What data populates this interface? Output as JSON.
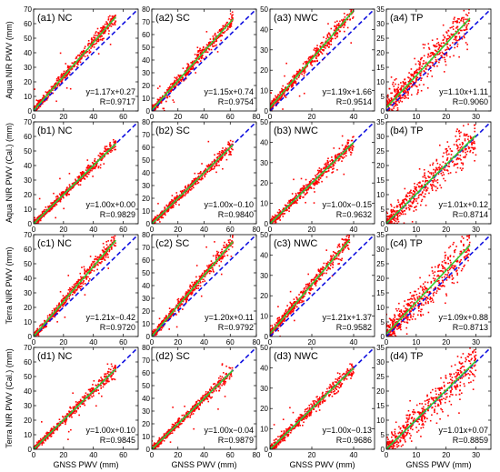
{
  "colors": {
    "points": "#ff0000",
    "fit": "#33cc33",
    "oneToOne": "#1010e0",
    "axis": "#000000"
  },
  "xlabel": "GNSS PWV (mm)",
  "row_ylabels": [
    "Aqua NIR PWV (mm)",
    "Aqua NIR PWV (Cal.) (mm)",
    "Terra NIR PWV (mm)",
    "Terra NIR PWV (Cal.) (mm)"
  ],
  "chart_data": [
    {
      "type": "scatter",
      "label": "(a1) NC",
      "xlim": [
        0,
        70
      ],
      "ylim": [
        0,
        70
      ],
      "xticks": [
        0,
        20,
        40,
        60
      ],
      "yticks": [
        0,
        10,
        20,
        30,
        40,
        50,
        60,
        70
      ],
      "ylabel": "Aqua NIR PWV (mm)",
      "slope": 1.17,
      "intercept": 0.27,
      "r": 0.9717,
      "equation": "y=1.17x+0.27",
      "r_text": "R=0.9717",
      "xmax": 55,
      "spread": 2.6
    },
    {
      "type": "scatter",
      "label": "(a2) SC",
      "xlim": [
        0,
        80
      ],
      "ylim": [
        0,
        80
      ],
      "xticks": [
        0,
        20,
        40,
        60,
        80
      ],
      "yticks": [
        0,
        10,
        20,
        30,
        40,
        50,
        60,
        70,
        80
      ],
      "ylabel": "",
      "slope": 1.15,
      "intercept": 0.74,
      "r": 0.9754,
      "equation": "y=1.15x+0.74",
      "r_text": "R=0.9754",
      "xmax": 62,
      "spread": 3.0
    },
    {
      "type": "scatter",
      "label": "(a3) NWC",
      "xlim": [
        0,
        50
      ],
      "ylim": [
        0,
        50
      ],
      "xticks": [
        0,
        20,
        40
      ],
      "yticks": [
        0,
        10,
        20,
        30,
        40,
        50
      ],
      "ylabel": "",
      "slope": 1.19,
      "intercept": 1.66,
      "r": 0.9514,
      "equation": "y=1.19x+1.66",
      "r_text": "R=0.9514",
      "xmax": 40,
      "spread": 2.2
    },
    {
      "type": "scatter",
      "label": "(a4) TP",
      "xlim": [
        0,
        35
      ],
      "ylim": [
        0,
        35
      ],
      "xticks": [
        0,
        10,
        20,
        30
      ],
      "yticks": [
        0,
        5,
        10,
        15,
        20,
        25,
        30,
        35
      ],
      "ylabel": "",
      "slope": 1.1,
      "intercept": 1.11,
      "r": 0.906,
      "equation": "y=1.10x+1.11",
      "r_text": "R=0.9060",
      "xmax": 28,
      "spread": 3.8
    },
    {
      "type": "scatter",
      "label": "(b1) NC",
      "xlim": [
        0,
        70
      ],
      "ylim": [
        0,
        70
      ],
      "xticks": [
        0,
        20,
        40,
        60
      ],
      "yticks": [
        0,
        10,
        20,
        30,
        40,
        50,
        60,
        70
      ],
      "ylabel": "Aqua NIR PWV (Cal.) (mm)",
      "slope": 1.0,
      "intercept": 0.0,
      "r": 0.9829,
      "equation": "y=1.00x+0.00",
      "r_text": "R=0.9829",
      "xmax": 55,
      "spread": 2.2
    },
    {
      "type": "scatter",
      "label": "(b2) SC",
      "xlim": [
        0,
        80
      ],
      "ylim": [
        0,
        80
      ],
      "xticks": [
        0,
        20,
        40,
        60,
        80
      ],
      "yticks": [
        0,
        10,
        20,
        30,
        40,
        50,
        60,
        70,
        80
      ],
      "ylabel": "",
      "slope": 1.0,
      "intercept": -0.1,
      "r": 0.984,
      "equation": "y=1.00x−0.10",
      "r_text": "R=0.9840",
      "xmax": 62,
      "spread": 2.6
    },
    {
      "type": "scatter",
      "label": "(b3) NWC",
      "xlim": [
        0,
        50
      ],
      "ylim": [
        0,
        50
      ],
      "xticks": [
        0,
        20,
        40
      ],
      "yticks": [
        0,
        10,
        20,
        30,
        40,
        50
      ],
      "ylabel": "",
      "slope": 1.0,
      "intercept": -0.15,
      "r": 0.9632,
      "equation": "y=1.00x−0.15",
      "r_text": "R=0.9632",
      "xmax": 40,
      "spread": 1.9
    },
    {
      "type": "scatter",
      "label": "(b4) TP",
      "xlim": [
        0,
        35
      ],
      "ylim": [
        0,
        35
      ],
      "xticks": [
        0,
        10,
        20,
        30
      ],
      "yticks": [
        0,
        5,
        10,
        15,
        20,
        25,
        30,
        35
      ],
      "ylabel": "",
      "slope": 1.01,
      "intercept": 0.12,
      "r": 0.8714,
      "equation": "y=1.01x+0.12",
      "r_text": "R=0.8714",
      "xmax": 30,
      "spread": 3.6
    },
    {
      "type": "scatter",
      "label": "(c1) NC",
      "xlim": [
        0,
        70
      ],
      "ylim": [
        0,
        70
      ],
      "xticks": [
        0,
        20,
        40,
        60
      ],
      "yticks": [
        0,
        10,
        20,
        30,
        40,
        50,
        60,
        70
      ],
      "ylabel": "Terra NIR PWV (mm)",
      "slope": 1.21,
      "intercept": -0.42,
      "r": 0.972,
      "equation": "y=1.21x−0.42",
      "r_text": "R=0.9720",
      "xmax": 55,
      "spread": 2.6
    },
    {
      "type": "scatter",
      "label": "(c2) SC",
      "xlim": [
        0,
        80
      ],
      "ylim": [
        0,
        80
      ],
      "xticks": [
        0,
        20,
        40,
        60,
        80
      ],
      "yticks": [
        0,
        10,
        20,
        30,
        40,
        50,
        60,
        70,
        80
      ],
      "ylabel": "",
      "slope": 1.2,
      "intercept": 0.11,
      "r": 0.9792,
      "equation": "y=1.20x+0.11",
      "r_text": "R=0.9792",
      "xmax": 62,
      "spread": 2.8
    },
    {
      "type": "scatter",
      "label": "(c3) NWC",
      "xlim": [
        0,
        50
      ],
      "ylim": [
        0,
        50
      ],
      "xticks": [
        0,
        20,
        40
      ],
      "yticks": [
        0,
        10,
        20,
        30,
        40,
        50
      ],
      "ylabel": "",
      "slope": 1.21,
      "intercept": 1.37,
      "r": 0.9582,
      "equation": "y=1.21x+1.37",
      "r_text": "R=0.9582",
      "xmax": 38,
      "spread": 2.2
    },
    {
      "type": "scatter",
      "label": "(c4) TP",
      "xlim": [
        0,
        35
      ],
      "ylim": [
        0,
        35
      ],
      "xticks": [
        0,
        10,
        20,
        30
      ],
      "yticks": [
        0,
        5,
        10,
        15,
        20,
        25,
        30,
        35
      ],
      "ylabel": "",
      "slope": 1.09,
      "intercept": 0.88,
      "r": 0.8713,
      "equation": "y=1.09x+0.88",
      "r_text": "R=0.8713",
      "xmax": 28,
      "spread": 3.8
    },
    {
      "type": "scatter",
      "label": "(d1) NC",
      "xlim": [
        0,
        70
      ],
      "ylim": [
        0,
        70
      ],
      "xticks": [
        0,
        20,
        40,
        60
      ],
      "yticks": [
        0,
        10,
        20,
        30,
        40,
        50,
        60,
        70
      ],
      "ylabel": "Terra NIR PWV (Cal.) (mm)",
      "slope": 1.0,
      "intercept": 0.1,
      "r": 0.9845,
      "equation": "y=1.00x+0.10",
      "r_text": "R=0.9845",
      "xmax": 55,
      "spread": 2.2
    },
    {
      "type": "scatter",
      "label": "(d2) SC",
      "xlim": [
        0,
        80
      ],
      "ylim": [
        0,
        80
      ],
      "xticks": [
        0,
        20,
        40,
        60,
        80
      ],
      "yticks": [
        0,
        10,
        20,
        30,
        40,
        50,
        60,
        70,
        80
      ],
      "ylabel": "",
      "slope": 1.0,
      "intercept": -0.04,
      "r": 0.9879,
      "equation": "y=1.00x−0.04",
      "r_text": "R=0.9879",
      "xmax": 62,
      "spread": 2.4
    },
    {
      "type": "scatter",
      "label": "(d3) NWC",
      "xlim": [
        0,
        50
      ],
      "ylim": [
        0,
        50
      ],
      "xticks": [
        0,
        20,
        40
      ],
      "yticks": [
        0,
        10,
        20,
        30,
        40,
        50
      ],
      "ylabel": "",
      "slope": 1.0,
      "intercept": -0.13,
      "r": 0.9686,
      "equation": "y=1.00x−0.13",
      "r_text": "R=0.9686",
      "xmax": 40,
      "spread": 1.9
    },
    {
      "type": "scatter",
      "label": "(d4) TP",
      "xlim": [
        0,
        35
      ],
      "ylim": [
        0,
        35
      ],
      "xticks": [
        0,
        10,
        20,
        30
      ],
      "yticks": [
        0,
        5,
        10,
        15,
        20,
        25,
        30,
        35
      ],
      "ylabel": "",
      "slope": 1.01,
      "intercept": 0.07,
      "r": 0.8859,
      "equation": "y=1.01x+0.07",
      "r_text": "R=0.8859",
      "xmax": 30,
      "spread": 3.6
    }
  ]
}
